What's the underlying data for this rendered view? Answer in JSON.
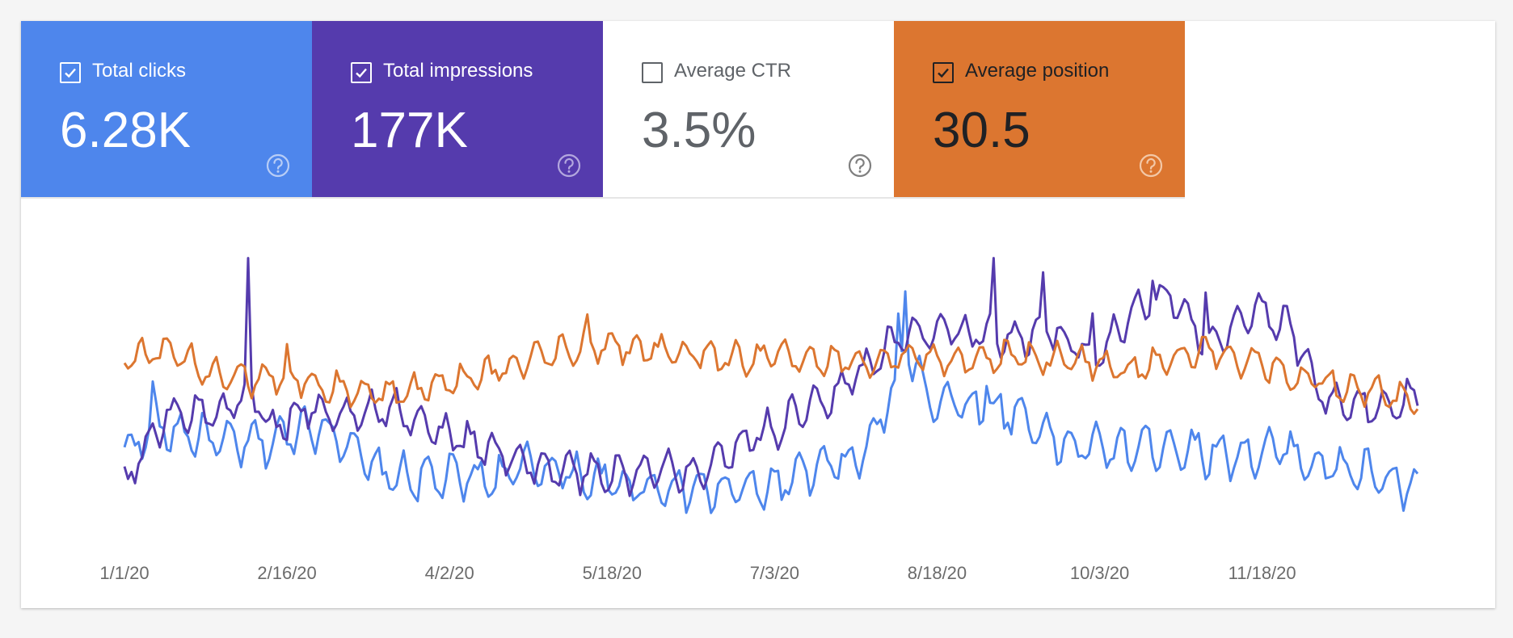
{
  "metrics": [
    {
      "label": "Total clicks",
      "value": "6.28K",
      "checked": true,
      "bg": "#4e86ec",
      "fg": "#ffffff",
      "help": "#b8cdf6"
    },
    {
      "label": "Total impressions",
      "value": "177K",
      "checked": true,
      "bg": "#553bad",
      "fg": "#ffffff",
      "help": "#b3a7de"
    },
    {
      "label": "Average CTR",
      "value": "3.5%",
      "checked": false,
      "bg": "#ffffff",
      "fg": "#5f6368",
      "help": "#7f7f7f"
    },
    {
      "label": "Average position",
      "value": "30.5",
      "checked": true,
      "bg": "#dc7630",
      "fg": "#202124",
      "help": "#f3c8a7"
    }
  ],
  "chart_data": {
    "type": "line",
    "x_labels": [
      "1/1/20",
      "2/16/20",
      "4/2/20",
      "5/18/20",
      "7/3/20",
      "8/18/20",
      "10/3/20",
      "11/18/20"
    ],
    "grid": false,
    "legend": "none",
    "series": [
      {
        "metric": "Total clicks",
        "color": "#4e86ec",
        "keyframes": [
          [
            0,
            0.27
          ],
          [
            9,
            0.36
          ],
          [
            19,
            0.34
          ],
          [
            29,
            0.3
          ],
          [
            42,
            0.31
          ],
          [
            52,
            0.38
          ],
          [
            63,
            0.32
          ],
          [
            70,
            0.2
          ],
          [
            78,
            0.17
          ],
          [
            91,
            0.17
          ],
          [
            105,
            0.17
          ],
          [
            117,
            0.22
          ],
          [
            128,
            0.18
          ],
          [
            140,
            0.14
          ],
          [
            152,
            0.14
          ],
          [
            168,
            0.12
          ],
          [
            182,
            0.13
          ],
          [
            195,
            0.2
          ],
          [
            208,
            0.24
          ],
          [
            215,
            0.42
          ],
          [
            222,
            0.66
          ],
          [
            228,
            0.48
          ],
          [
            240,
            0.45
          ],
          [
            253,
            0.42
          ],
          [
            265,
            0.3
          ],
          [
            280,
            0.28
          ],
          [
            295,
            0.3
          ],
          [
            306,
            0.27
          ],
          [
            318,
            0.26
          ],
          [
            328,
            0.28
          ],
          [
            340,
            0.21
          ],
          [
            352,
            0.19
          ],
          [
            365,
            0.12
          ]
        ],
        "amp": 0.07,
        "spikes": [
          [
            8,
            0.17
          ],
          [
            221,
            0.32
          ],
          [
            219,
            0.2
          ],
          [
            244,
            0.12
          ]
        ]
      },
      {
        "metric": "Total impressions",
        "color": "#553bad",
        "keyframes": [
          [
            0,
            0.15
          ],
          [
            12,
            0.42
          ],
          [
            20,
            0.42
          ],
          [
            28,
            0.42
          ],
          [
            35,
            0.52
          ],
          [
            42,
            0.36
          ],
          [
            52,
            0.45
          ],
          [
            63,
            0.4
          ],
          [
            75,
            0.45
          ],
          [
            86,
            0.36
          ],
          [
            100,
            0.3
          ],
          [
            113,
            0.22
          ],
          [
            128,
            0.19
          ],
          [
            145,
            0.19
          ],
          [
            158,
            0.2
          ],
          [
            165,
            0.22
          ],
          [
            175,
            0.32
          ],
          [
            185,
            0.37
          ],
          [
            200,
            0.5
          ],
          [
            208,
            0.58
          ],
          [
            218,
            0.7
          ],
          [
            235,
            0.75
          ],
          [
            250,
            0.7
          ],
          [
            262,
            0.74
          ],
          [
            274,
            0.64
          ],
          [
            285,
            0.8
          ],
          [
            296,
            0.87
          ],
          [
            308,
            0.68
          ],
          [
            318,
            0.82
          ],
          [
            330,
            0.76
          ],
          [
            338,
            0.5
          ],
          [
            352,
            0.44
          ],
          [
            365,
            0.48
          ]
        ],
        "amp": 0.06,
        "spikes": [
          [
            35,
            0.43
          ],
          [
            246,
            0.28
          ],
          [
            260,
            0.22
          ],
          [
            274,
            0.12
          ],
          [
            306,
            0.15
          ],
          [
            291,
            0.12
          ]
        ]
      },
      {
        "metric": "Average position",
        "color": "#dc7630",
        "keyframes": [
          [
            0,
            0.64
          ],
          [
            10,
            0.66
          ],
          [
            18,
            0.62
          ],
          [
            30,
            0.55
          ],
          [
            45,
            0.56
          ],
          [
            60,
            0.52
          ],
          [
            72,
            0.49
          ],
          [
            86,
            0.52
          ],
          [
            100,
            0.56
          ],
          [
            115,
            0.63
          ],
          [
            128,
            0.67
          ],
          [
            140,
            0.68
          ],
          [
            155,
            0.66
          ],
          [
            168,
            0.63
          ],
          [
            183,
            0.64
          ],
          [
            198,
            0.62
          ],
          [
            212,
            0.63
          ],
          [
            225,
            0.64
          ],
          [
            240,
            0.62
          ],
          [
            250,
            0.64
          ],
          [
            260,
            0.63
          ],
          [
            272,
            0.62
          ],
          [
            286,
            0.59
          ],
          [
            298,
            0.64
          ],
          [
            310,
            0.66
          ],
          [
            322,
            0.6
          ],
          [
            333,
            0.56
          ],
          [
            345,
            0.53
          ],
          [
            357,
            0.5
          ],
          [
            365,
            0.45
          ]
        ],
        "amp": 0.05,
        "spikes": [
          [
            46,
            0.08
          ],
          [
            131,
            0.06
          ]
        ]
      }
    ]
  }
}
